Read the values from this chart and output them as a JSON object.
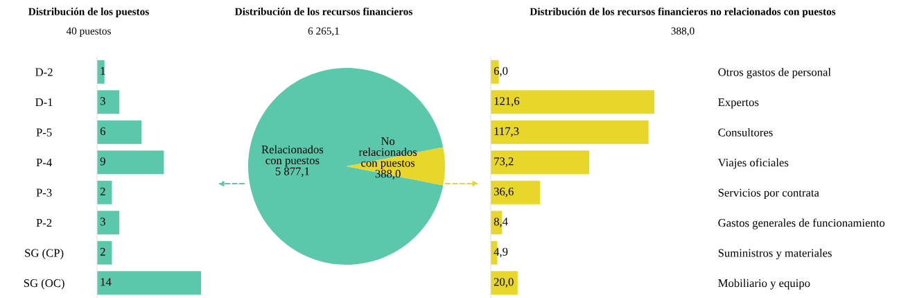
{
  "chart_data": [
    {
      "type": "bar",
      "orientation": "horizontal",
      "title": "Distribución de los puestos",
      "subtitle": "40 puestos",
      "categories": [
        "D-2",
        "D-1",
        "P-5",
        "P-4",
        "P-3",
        "P-2",
        "SG (CP)",
        "SG (OC)"
      ],
      "values": [
        1,
        3,
        6,
        9,
        2,
        3,
        2,
        14
      ],
      "color": "#5cc8ab",
      "data_labels": true
    },
    {
      "type": "pie",
      "title": "Distribución de los recursos financieros",
      "subtitle": "6 265,1",
      "categories": [
        "Relacionados\ncon puestos",
        "No\nrelacionados\ncon puestos"
      ],
      "values": [
        5877.1,
        388.0
      ],
      "colors": [
        "#5cc8ab",
        "#e8d62a"
      ],
      "value_labels": [
        "5 877,1",
        "388,0"
      ]
    },
    {
      "type": "bar",
      "orientation": "horizontal",
      "title": "Distribución de los recursos financieros no relacionados con puestos",
      "subtitle": "388,0",
      "categories": [
        "Otros gastos de personal",
        "Expertos",
        "Consultores",
        "Viajes oficiales",
        "Servicios por contrata",
        "Gastos generales de funcionamiento",
        "Suministros y materiales",
        "Mobiliario y equipo"
      ],
      "values": [
        6.0,
        121.6,
        117.3,
        73.2,
        36.6,
        8.4,
        4.9,
        20.0
      ],
      "color": "#e8d62a",
      "value_labels": [
        "6,0",
        "121,6",
        "117,3",
        "73,2",
        "36,6",
        "8,4",
        "4,9",
        "20,0"
      ]
    }
  ]
}
